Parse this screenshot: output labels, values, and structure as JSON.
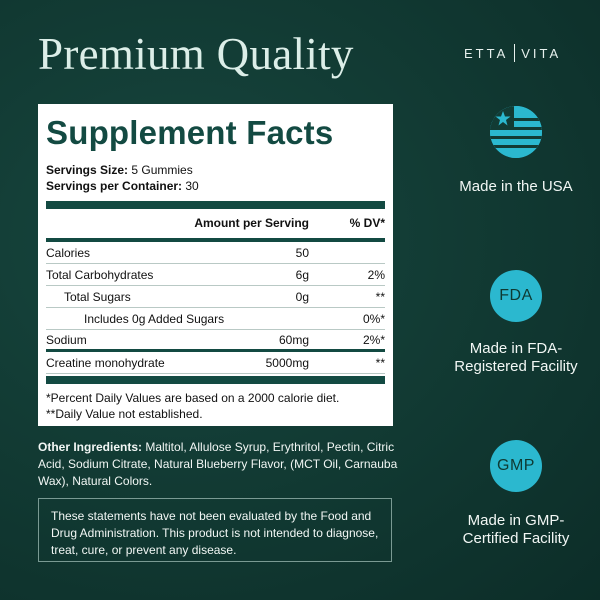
{
  "headline": "Premium Quality",
  "brand": {
    "left": "ETTA",
    "right": "VITA"
  },
  "facts": {
    "title": "Supplement Facts",
    "servings_size_label": "Servings Size:",
    "servings_size_value": "5 Gummies",
    "servings_per_container_label": "Servings per Container:",
    "servings_per_container_value": "30",
    "header_amount": "Amount per Serving",
    "header_dv": "% DV*",
    "rows": [
      {
        "label": "Calories",
        "amount": "50",
        "dv": ""
      },
      {
        "label": "Total Carbohydrates",
        "amount": "6g",
        "dv": "2%"
      },
      {
        "label": "Total Sugars",
        "amount": "0g",
        "dv": "**"
      },
      {
        "label": "Includes 0g Added Sugars",
        "amount": "",
        "dv": "0%*"
      },
      {
        "label": "Sodium",
        "amount": "60mg",
        "dv": "2%*"
      },
      {
        "label": "Creatine monohydrate",
        "amount": "5000mg",
        "dv": "**"
      }
    ],
    "footnote1": "*Percent Daily Values are based on a 2000 calorie diet.",
    "footnote2": "**Daily Value not established."
  },
  "ingredients": {
    "label": "Other Ingredients:",
    "text": " Maltitol, Allulose Syrup, Erythritol, Pectin, Citric Acid, Sodium Citrate, Natural Blueberry Flavor, (MCT Oil, Carnauba Wax), Natural Colors."
  },
  "disclaimer": "These statements have not been evaluated by the Food and Drug Administration. This product is not intended to diagnose, treat, cure, or prevent any disease.",
  "badges": [
    {
      "icon": "us-flag-icon",
      "text": "Made in the USA"
    },
    {
      "icon": "FDA",
      "text": "Made in FDA-Registered Facility"
    },
    {
      "icon": "GMP",
      "text": "Made in GMP-Certified Facility"
    }
  ],
  "colors": {
    "background": "#123b34",
    "accent": "#2bb8cf",
    "label_green": "#134a42"
  }
}
